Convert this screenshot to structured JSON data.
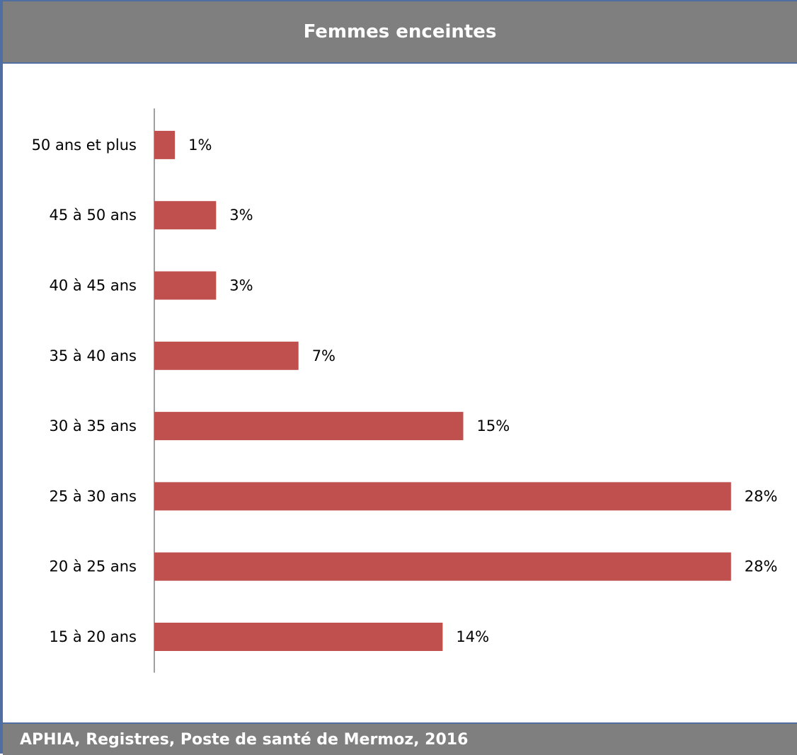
{
  "header": {
    "title": "Femmes enceintes"
  },
  "footer": {
    "source": "APHIA, Registres, Poste de santé de Mermoz, 2016"
  },
  "colors": {
    "bar": "#c0504d",
    "header_bg": "#7f7f7f",
    "border": "#4f6fa3"
  },
  "chart_data": {
    "type": "bar",
    "orientation": "horizontal",
    "categories": [
      "15 à 20 ans",
      "20 à 25 ans",
      "25 à 30 ans",
      "30 à 35 ans",
      "35 à 40 ans",
      "40 à 45 ans",
      "45 à 50 ans",
      "50 ans et plus"
    ],
    "values": [
      14,
      28,
      28,
      15,
      7,
      3,
      3,
      1
    ],
    "data_labels": [
      "14%",
      "28%",
      "28%",
      "15%",
      "7%",
      "3%",
      "3%",
      "1%"
    ],
    "unit": "%",
    "title": "",
    "xlabel": "",
    "ylabel": "",
    "grid": false,
    "legend": "none"
  }
}
